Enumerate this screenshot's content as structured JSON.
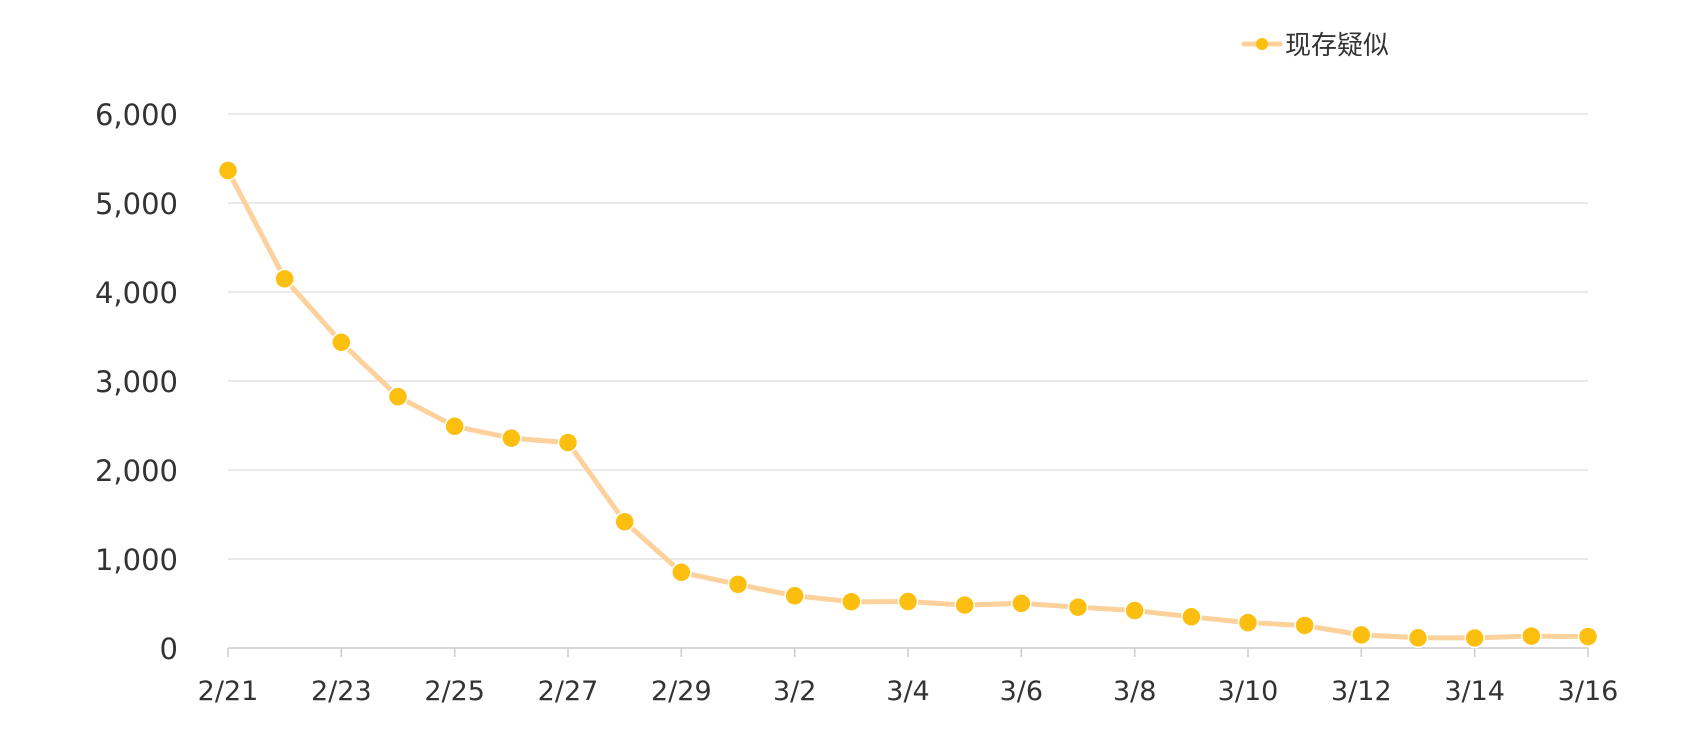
{
  "chart_data": {
    "type": "line",
    "x": [
      "2/21",
      "2/22",
      "2/23",
      "2/24",
      "2/25",
      "2/26",
      "2/27",
      "2/28",
      "2/29",
      "3/1",
      "3/2",
      "3/3",
      "3/4",
      "3/5",
      "3/6",
      "3/7",
      "3/8",
      "3/9",
      "3/10",
      "3/11",
      "3/12",
      "3/13",
      "3/14",
      "3/15",
      "3/16"
    ],
    "x_tick_labels": [
      "2/21",
      "2/23",
      "2/25",
      "2/27",
      "2/29",
      "3/2",
      "3/4",
      "3/6",
      "3/8",
      "3/10",
      "3/12",
      "3/14",
      "3/16"
    ],
    "series": [
      {
        "name": "现存疑似",
        "values": [
          5365,
          4148,
          3434,
          2824,
          2491,
          2358,
          2308,
          1418,
          851,
          715,
          587,
          520,
          522,
          482,
          502,
          458,
          421,
          351,
          285,
          253,
          147,
          115,
          113,
          134,
          128
        ],
        "line_color": "#FDD19C",
        "marker_color": "#FDBF0F"
      }
    ],
    "y_ticks": [
      0,
      1000,
      2000,
      3000,
      4000,
      5000,
      6000
    ],
    "ylim": [
      0,
      6000
    ],
    "grid": true,
    "legend_position": "top-right",
    "title": "",
    "xlabel": "",
    "ylabel": ""
  }
}
